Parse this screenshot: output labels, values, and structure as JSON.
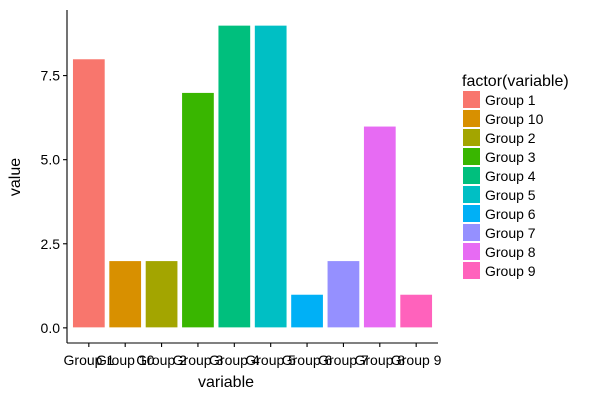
{
  "chart_data": {
    "type": "bar",
    "categories": [
      "Group 1",
      "Group 10",
      "Group 2",
      "Group 3",
      "Group 4",
      "Group 5",
      "Group 6",
      "Group 7",
      "Group 8",
      "Group 9"
    ],
    "values": [
      8,
      2,
      2,
      7,
      9,
      9,
      1,
      2,
      6,
      1
    ],
    "colors": [
      "#F8766D",
      "#D89000",
      "#A3A500",
      "#39B600",
      "#00BF7D",
      "#00BFC4",
      "#00B0F6",
      "#9590FF",
      "#E76BF3",
      "#FF62BC"
    ],
    "title": "",
    "xlabel": "variable",
    "ylabel": "value",
    "ylim": [
      -0.45,
      9.45
    ],
    "yticks": [
      0,
      2.5,
      5,
      7.5
    ],
    "ytick_labels": [
      "0.0",
      "2.5",
      "5.0",
      "7.5"
    ],
    "grid": false,
    "legend": {
      "title": "factor(variable)",
      "placement": "right",
      "entries": [
        "Group 1",
        "Group 10",
        "Group 2",
        "Group 3",
        "Group 4",
        "Group 5",
        "Group 6",
        "Group 7",
        "Group 8",
        "Group 9"
      ]
    }
  }
}
